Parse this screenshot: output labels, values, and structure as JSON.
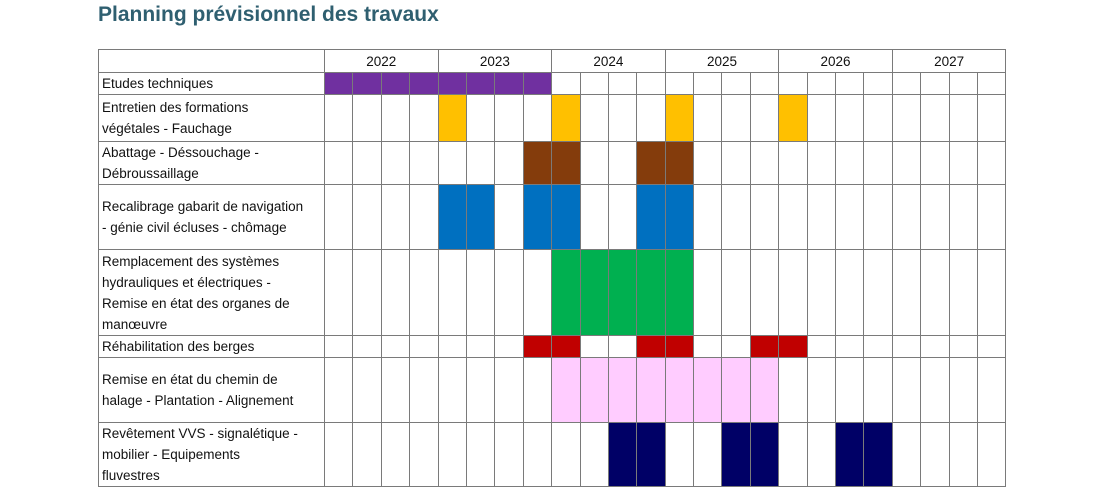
{
  "chart_data": {
    "type": "gantt",
    "title": "Planning prévisionnel des travaux",
    "years": [
      "2022",
      "2023",
      "2024",
      "2025",
      "2026",
      "2027"
    ],
    "periods_per_year": 4,
    "tasks": [
      {
        "lines": [
          "Etudes techniques"
        ],
        "color": "#7030a0",
        "bars": [
          [
            "2022-Q1",
            "2023-Q4"
          ]
        ]
      },
      {
        "lines": [
          "Entretien des formations",
          "végétales - Fauchage"
        ],
        "color": "#ffc000",
        "bars": [
          [
            "2023-Q1",
            "2023-Q1"
          ],
          [
            "2024-Q1",
            "2024-Q1"
          ],
          [
            "2025-Q1",
            "2025-Q1"
          ],
          [
            "2026-Q1",
            "2026-Q1"
          ]
        ]
      },
      {
        "lines": [
          "Abattage - Déssouchage -",
          "Débroussaillage"
        ],
        "color": "#843c0c",
        "bars": [
          [
            "2023-Q4",
            "2024-Q1"
          ],
          [
            "2024-Q4",
            "2025-Q1"
          ]
        ]
      },
      {
        "lines": [
          "Recalibrage gabarit de navigation",
          "- génie civil écluses - chômage"
        ],
        "color": "#0070c0",
        "bars": [
          [
            "2023-Q1",
            "2023-Q2"
          ],
          [
            "2023-Q4",
            "2024-Q1"
          ],
          [
            "2024-Q4",
            "2025-Q1"
          ]
        ]
      },
      {
        "lines": [
          "Remplacement des systèmes",
          "hydrauliques et électriques -",
          "Remise en état des organes de",
          "manœuvre"
        ],
        "color": "#00b050",
        "bars": [
          [
            "2024-Q1",
            "2025-Q1"
          ]
        ]
      },
      {
        "lines": [
          "Réhabilitation des berges"
        ],
        "color": "#c00000",
        "bars": [
          [
            "2023-Q4",
            "2024-Q1"
          ],
          [
            "2024-Q4",
            "2025-Q1"
          ],
          [
            "2025-Q4",
            "2026-Q1"
          ]
        ]
      },
      {
        "lines": [
          "Remise en état du chemin de",
          "halage - Plantation  - Alignement"
        ],
        "color": "#ffccff",
        "bars": [
          [
            "2024-Q1",
            "2025-Q4"
          ]
        ]
      },
      {
        "lines": [
          "Revêtement VVS - signalétique -",
          "mobilier - Equipements",
          "fluvestres"
        ],
        "color": "#000066",
        "bars": [
          [
            "2024-Q3",
            "2024-Q4"
          ],
          [
            "2025-Q3",
            "2025-Q4"
          ],
          [
            "2026-Q3",
            "2026-Q4"
          ]
        ]
      }
    ]
  }
}
